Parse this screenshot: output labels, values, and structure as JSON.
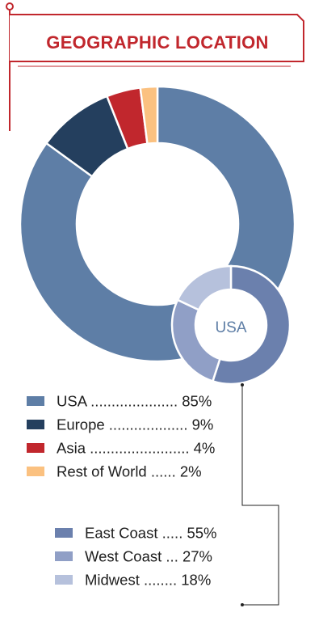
{
  "title": "GEOGRAPHIC LOCATION",
  "colors": {
    "accent": "#c1272d",
    "connector": "#222222"
  },
  "chart_data": [
    {
      "type": "pie",
      "categories": [
        "USA",
        "Europe",
        "Asia",
        "Rest of World"
      ],
      "values": [
        85,
        9,
        4,
        2
      ],
      "value_labels": [
        "85%",
        "9%",
        "4%",
        "2%"
      ],
      "colors": [
        "#5e7ea6",
        "#243f5e",
        "#c1272d",
        "#fbc180"
      ],
      "legend_dots": [
        ".....................",
        "...................",
        "........................",
        "......"
      ],
      "title": "GEOGRAPHIC LOCATION"
    },
    {
      "type": "pie",
      "center_label": "USA",
      "categories": [
        "East Coast",
        "West Coast",
        "Midwest"
      ],
      "values": [
        55,
        27,
        18
      ],
      "value_labels": [
        "55%",
        "27%",
        "18%"
      ],
      "colors": [
        "#6b80ad",
        "#909fc6",
        "#b6c1dc"
      ],
      "legend_dots": [
        ".....",
        "...",
        "........"
      ]
    }
  ]
}
